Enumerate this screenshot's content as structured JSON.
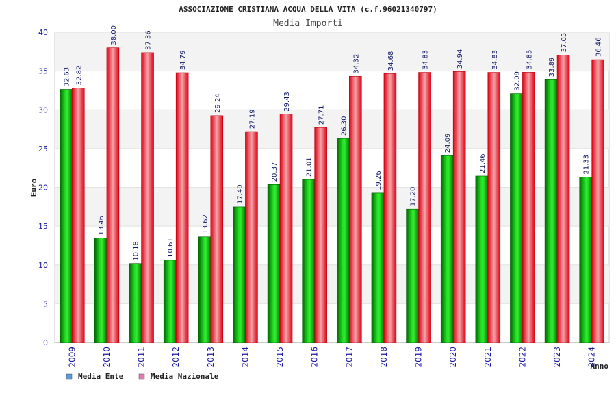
{
  "chart_data": {
    "type": "bar",
    "title": "ASSOCIAZIONE CRISTIANA ACQUA DELLA VITA (c.f.96021340797)",
    "subtitle": "Media Importi",
    "xlabel": "Anno",
    "ylabel": "Euro",
    "ylim": [
      0,
      40
    ],
    "yticks": [
      "0",
      "5",
      "10",
      "15",
      "20",
      "25",
      "30",
      "35",
      "40"
    ],
    "grid": true,
    "legend_position": "bottom-left",
    "categories": [
      "2009",
      "2010",
      "2011",
      "2012",
      "2013",
      "2014",
      "2015",
      "2016",
      "2017",
      "2018",
      "2019",
      "2020",
      "2021",
      "2022",
      "2023",
      "2024"
    ],
    "series": [
      {
        "name": "Media Ente",
        "color": "#0aa00a",
        "legend_color": "#5b9bd5",
        "values": [
          32.63,
          13.46,
          10.18,
          10.61,
          13.62,
          17.49,
          20.37,
          21.01,
          26.3,
          19.26,
          17.2,
          24.09,
          21.46,
          32.09,
          33.89,
          21.33
        ],
        "labels": [
          "32.63",
          "13.46",
          "10.18",
          "10.61",
          "13.62",
          "17.49",
          "20.37",
          "21.01",
          "26.30",
          "19.26",
          "17.20",
          "24.09",
          "21.46",
          "32.09",
          "33.89",
          "21.33"
        ]
      },
      {
        "name": "Media Nazionale",
        "color": "#e0101a",
        "legend_color": "#e37ab2",
        "values": [
          32.82,
          38.0,
          37.36,
          34.79,
          29.24,
          27.19,
          29.43,
          27.71,
          34.32,
          34.68,
          34.83,
          34.94,
          34.83,
          34.85,
          37.05,
          36.46
        ],
        "labels": [
          "32.82",
          "38.00",
          "37.36",
          "34.79",
          "29.24",
          "27.19",
          "29.43",
          "27.71",
          "34.32",
          "34.68",
          "34.83",
          "34.94",
          "34.83",
          "34.85",
          "37.05",
          "36.46"
        ]
      }
    ]
  }
}
